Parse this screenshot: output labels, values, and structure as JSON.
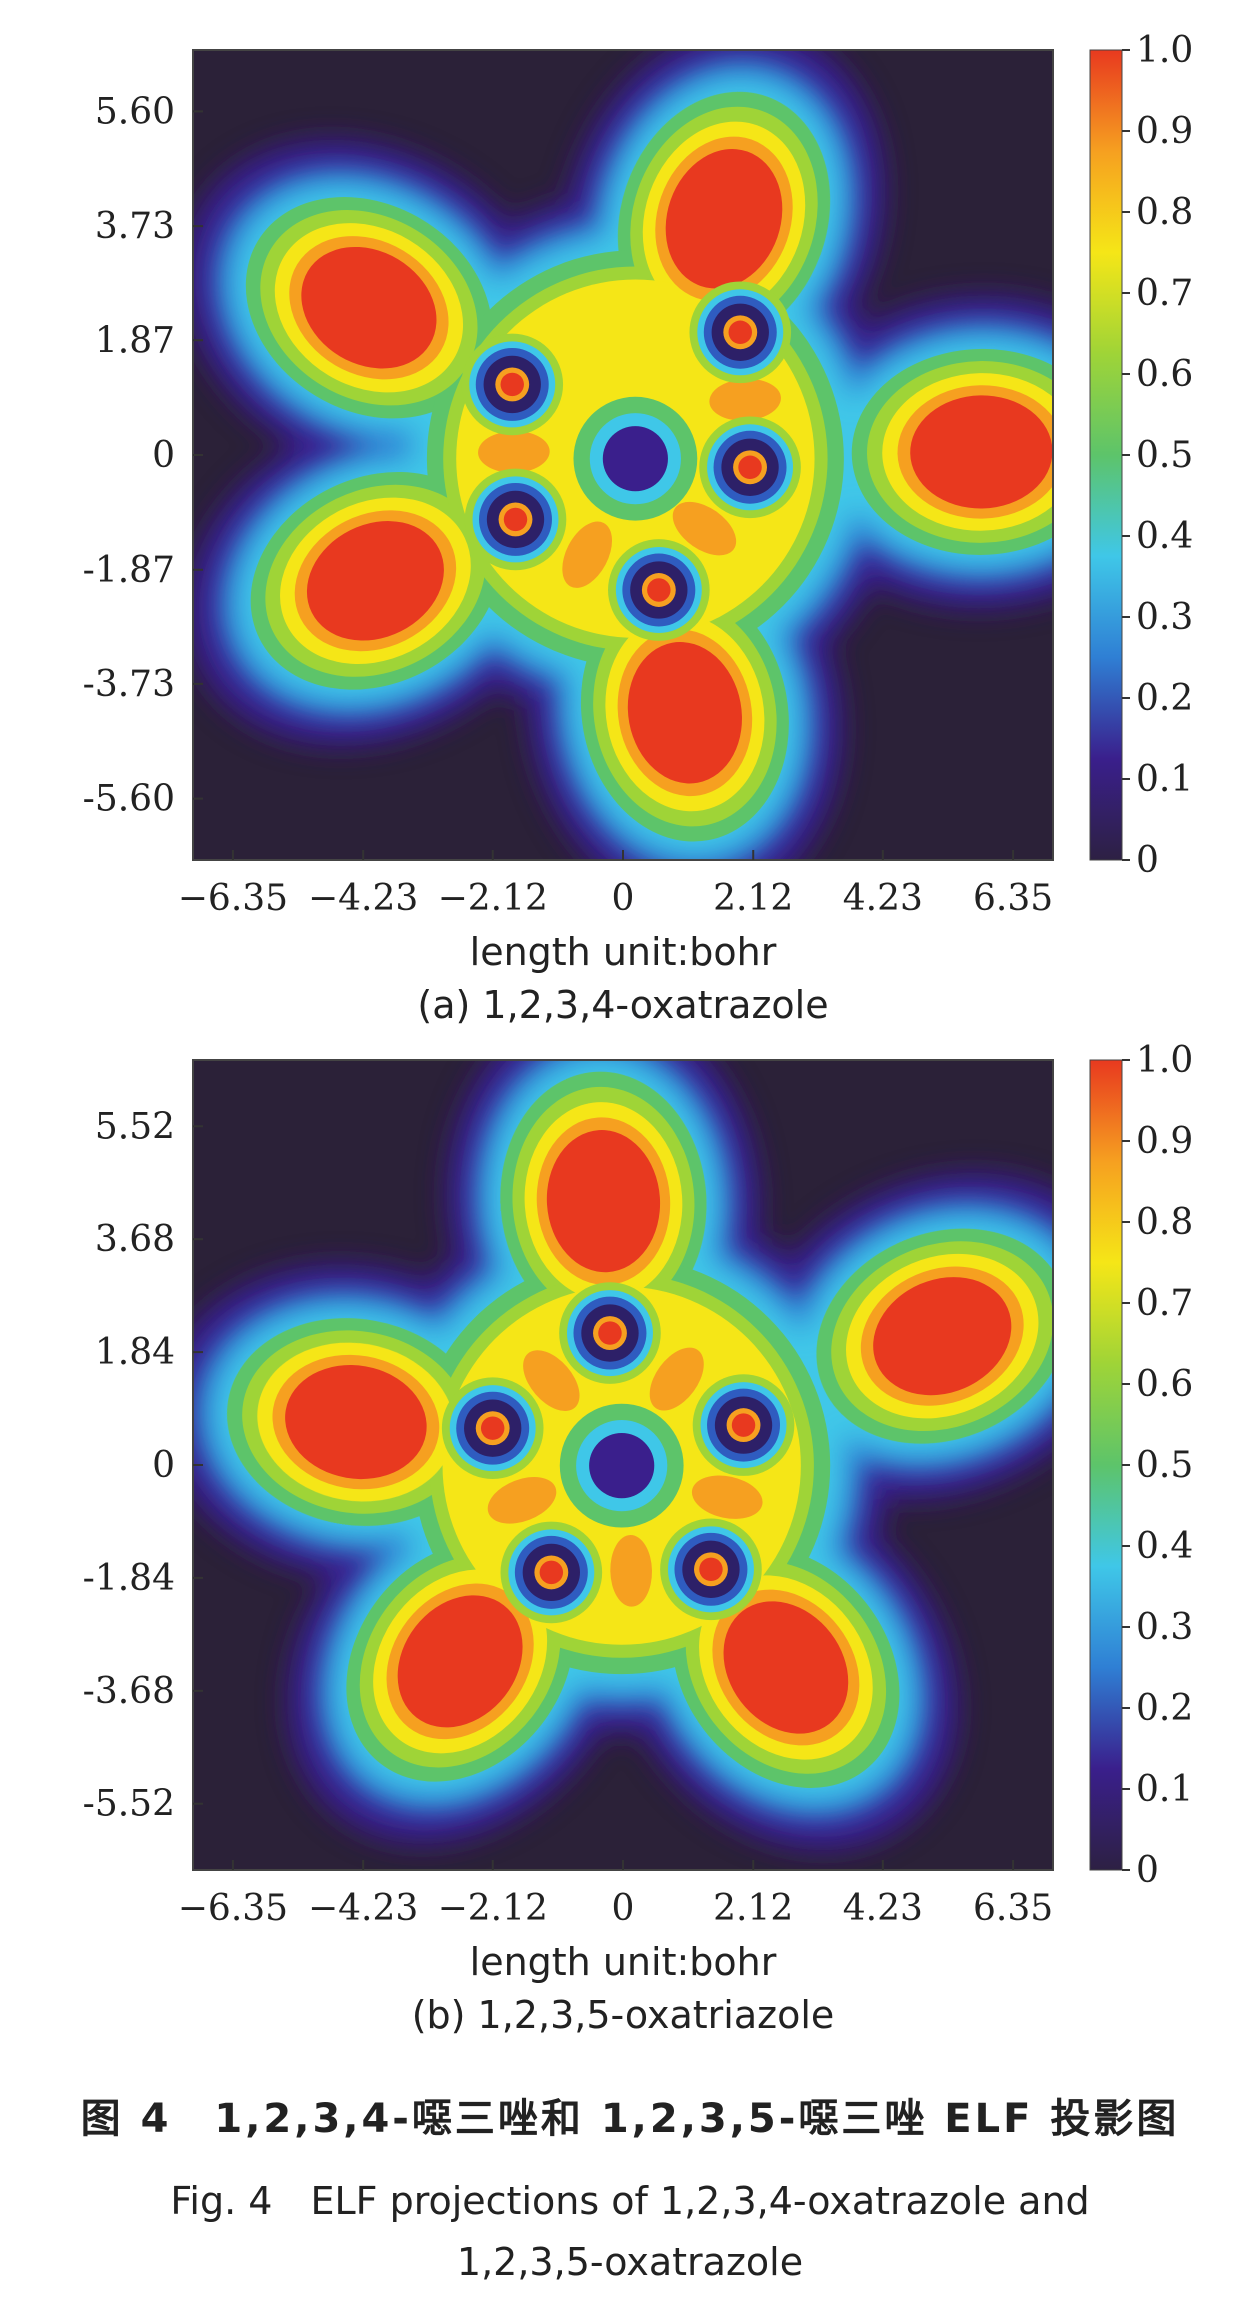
{
  "chart_data": [
    {
      "type": "heatmap",
      "subtitle": "(a) 1,2,3,4-oxatrazole",
      "xlabel": "length unit:bohr",
      "ylabel": "",
      "x_ticks": [
        "-6.35",
        "-4.23",
        "-2.12",
        "0",
        "2.12",
        "4.23",
        "6.35"
      ],
      "y_ticks": [
        "5.60",
        "3.73",
        "1.87",
        "0",
        "-1.87",
        "-3.73",
        "-5.60"
      ],
      "colorbar": {
        "ticks": [
          "1.0",
          "0.9",
          "0.8",
          "0.7",
          "0.6",
          "0.5",
          "0.4",
          "0.3",
          "0.2",
          "0.1",
          "0"
        ],
        "range": [
          0,
          1
        ],
        "colors": [
          "#2d2043",
          "#3a1f8c",
          "#2f7fd4",
          "#3fc7e8",
          "#5dc46a",
          "#9fd437",
          "#f5e617",
          "#f6a020",
          "#e8391f"
        ]
      },
      "background": "#2b2138",
      "atoms": [
        [
          -1.7,
          1.15
        ],
        [
          1.8,
          2.0
        ],
        [
          -1.65,
          -1.05
        ],
        [
          0.55,
          -2.2
        ],
        [
          1.95,
          -0.2
        ]
      ],
      "lone_pairs": [
        [
          -3.9,
          2.4
        ],
        [
          1.55,
          3.85
        ],
        [
          -3.8,
          -2.05
        ],
        [
          0.95,
          -4.2
        ],
        [
          5.5,
          0.05
        ]
      ]
    },
    {
      "type": "heatmap",
      "subtitle": "(b) 1,2,3,5-oxatriazole",
      "xlabel": "length unit:bohr",
      "ylabel": "",
      "x_ticks": [
        "-6.35",
        "-4.23",
        "-2.12",
        "0",
        "2.12",
        "4.23",
        "6.35"
      ],
      "y_ticks": [
        "5.52",
        "3.68",
        "1.84",
        "0",
        "-1.84",
        "-3.68",
        "-5.52"
      ],
      "colorbar": {
        "ticks": [
          "1.0",
          "0.9",
          "0.8",
          "0.7",
          "0.6",
          "0.5",
          "0.4",
          "0.3",
          "0.2",
          "0.1",
          "0"
        ],
        "range": [
          0,
          1
        ],
        "colors": [
          "#2d2043",
          "#3a1f8c",
          "#2f7fd4",
          "#3fc7e8",
          "#5dc46a",
          "#9fd437",
          "#f5e617",
          "#f6a020",
          "#e8391f"
        ]
      },
      "background": "#2b2138",
      "atoms": [
        [
          -2.0,
          0.6
        ],
        [
          -0.2,
          2.15
        ],
        [
          1.85,
          0.65
        ],
        [
          1.35,
          -1.7
        ],
        [
          -1.1,
          -1.75
        ]
      ],
      "lone_pairs": [
        [
          -4.1,
          0.7
        ],
        [
          -0.3,
          4.3
        ],
        [
          4.9,
          2.1
        ],
        [
          2.5,
          -3.3
        ],
        [
          -2.5,
          -3.2
        ]
      ]
    }
  ],
  "caption": {
    "chinese": "图 4　1,2,3,4-噁三唑和 1,2,3,5-噁三唑 ELF 投影图",
    "english_line1": "Fig. 4　ELF projections of 1,2,3,4-oxatrazole and",
    "english_line2": "1,2,3,5-oxatrazole"
  }
}
